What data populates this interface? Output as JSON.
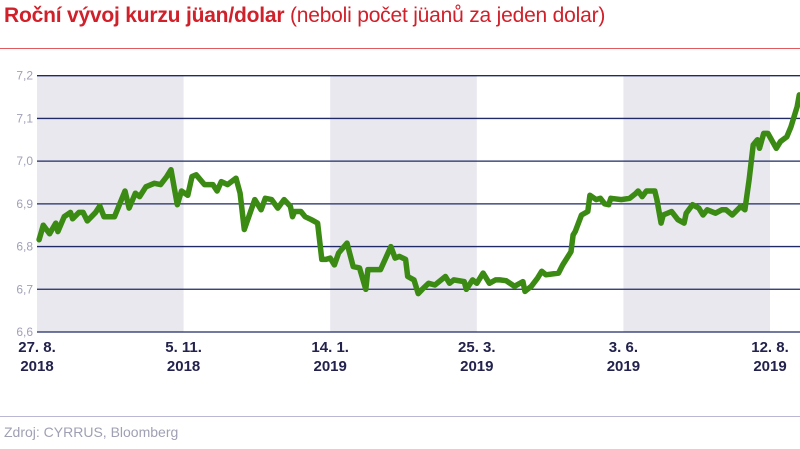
{
  "header": {
    "title": "Roční vývoj kurzu jüan/dolar",
    "subtitle": "(neboli počet jüanů za jeden dolar)"
  },
  "footer": {
    "source": "Zdroj: CYRRUS, Bloomberg"
  },
  "colors": {
    "title": "#d0202a",
    "line": "#3b8a13",
    "grid": "#1f2a66",
    "band": "#e8e8ee",
    "tick_label_y": "#a0a0b8",
    "tick_label_x": "#22224d"
  },
  "chart_data": {
    "type": "line",
    "title": "Roční vývoj kurzu jüan/dolar",
    "ylim": [
      6.6,
      7.2
    ],
    "yticks": [
      "7,2",
      "7,1",
      "7,0",
      "6,9",
      "6,8",
      "6,7",
      "6,6"
    ],
    "ytick_values": [
      7.2,
      7.1,
      7.0,
      6.9,
      6.8,
      6.7,
      6.6
    ],
    "xticks": [
      {
        "date": "2018-08-27",
        "line1": "27. 8.",
        "line2": "2018"
      },
      {
        "date": "2018-11-05",
        "line1": "5. 11.",
        "line2": "2018"
      },
      {
        "date": "2019-01-14",
        "line1": "14. 1.",
        "line2": "2019"
      },
      {
        "date": "2019-03-25",
        "line1": "25. 3.",
        "line2": "2019"
      },
      {
        "date": "2019-06-03",
        "line1": "3. 6.",
        "line2": "2019"
      },
      {
        "date": "2019-08-12",
        "line1": "12. 8.",
        "line2": "2019"
      }
    ],
    "xlim": [
      "2018-08-27",
      "2019-08-26"
    ],
    "grid": true,
    "shaded_bands": [
      [
        "2018-08-27",
        "2018-11-05"
      ],
      [
        "2019-01-14",
        "2019-03-25"
      ],
      [
        "2019-06-03",
        "2019-08-12"
      ]
    ],
    "series": [
      {
        "x": [
          "2018-08-28",
          "2018-08-30",
          "2018-09-02",
          "2018-09-05",
          "2018-09-06",
          "2018-09-09",
          "2018-09-12",
          "2018-09-13",
          "2018-09-16",
          "2018-09-18",
          "2018-09-20",
          "2018-09-24",
          "2018-09-26",
          "2018-09-28",
          "2018-10-03",
          "2018-10-08",
          "2018-10-10",
          "2018-10-13",
          "2018-10-15",
          "2018-10-18",
          "2018-10-22",
          "2018-10-25",
          "2018-10-28",
          "2018-10-30",
          "2018-11-02",
          "2018-11-04",
          "2018-11-07",
          "2018-11-09",
          "2018-11-11",
          "2018-11-15",
          "2018-11-19",
          "2018-11-21",
          "2018-11-23",
          "2018-11-26",
          "2018-11-30",
          "2018-12-02",
          "2018-12-04",
          "2018-12-07",
          "2018-12-09",
          "2018-12-12",
          "2018-12-14",
          "2018-12-17",
          "2018-12-20",
          "2018-12-23",
          "2018-12-26",
          "2018-12-27",
          "2018-12-28",
          "2018-12-31",
          "2019-01-02",
          "2019-01-05",
          "2019-01-08",
          "2019-01-10",
          "2019-01-12",
          "2019-01-14",
          "2019-01-16",
          "2019-01-18",
          "2019-01-22",
          "2019-01-25",
          "2019-01-28",
          "2019-01-31",
          "2019-02-01",
          "2019-02-07",
          "2019-02-12",
          "2019-02-14",
          "2019-02-16",
          "2019-02-19",
          "2019-02-20",
          "2019-02-23",
          "2019-02-25",
          "2019-02-27",
          "2019-03-02",
          "2019-03-05",
          "2019-03-10",
          "2019-03-12",
          "2019-03-14",
          "2019-03-19",
          "2019-03-20",
          "2019-03-23",
          "2019-03-25",
          "2019-03-28",
          "2019-03-31",
          "2019-04-03",
          "2019-04-05",
          "2019-04-08",
          "2019-04-12",
          "2019-04-16",
          "2019-04-17",
          "2019-04-20",
          "2019-04-23",
          "2019-04-25",
          "2019-04-27",
          "2019-05-03",
          "2019-05-05",
          "2019-05-09",
          "2019-05-10",
          "2019-05-11",
          "2019-05-14",
          "2019-05-17",
          "2019-05-18",
          "2019-05-21",
          "2019-05-23",
          "2019-05-25",
          "2019-05-27",
          "2019-05-28",
          "2019-06-02",
          "2019-06-06",
          "2019-06-09",
          "2019-06-10",
          "2019-06-12",
          "2019-06-14",
          "2019-06-18",
          "2019-06-19",
          "2019-06-21",
          "2019-06-22",
          "2019-06-26",
          "2019-06-29",
          "2019-07-02",
          "2019-07-03",
          "2019-07-06",
          "2019-07-09",
          "2019-07-11",
          "2019-07-13",
          "2019-07-17",
          "2019-07-20",
          "2019-07-22",
          "2019-07-25",
          "2019-07-29",
          "2019-07-31",
          "2019-08-02",
          "2019-08-04",
          "2019-08-06",
          "2019-08-07",
          "2019-08-09",
          "2019-08-11",
          "2019-08-15",
          "2019-08-17",
          "2019-08-20",
          "2019-08-22",
          "2019-08-25",
          "2019-08-26"
        ],
        "y": [
          6.816,
          6.85,
          6.83,
          6.855,
          6.835,
          6.87,
          6.88,
          6.865,
          6.88,
          6.88,
          6.86,
          6.88,
          6.895,
          6.87,
          6.87,
          6.93,
          6.89,
          6.925,
          6.917,
          6.94,
          6.948,
          6.945,
          6.964,
          6.98,
          6.898,
          6.93,
          6.92,
          6.964,
          6.968,
          6.945,
          6.945,
          6.93,
          6.952,
          6.945,
          6.96,
          6.925,
          6.84,
          6.882,
          6.91,
          6.886,
          6.913,
          6.91,
          6.89,
          6.91,
          6.894,
          6.87,
          6.882,
          6.882,
          6.87,
          6.863,
          6.855,
          6.77,
          6.77,
          6.773,
          6.757,
          6.785,
          6.808,
          6.753,
          6.75,
          6.7,
          6.746,
          6.746,
          6.8,
          6.773,
          6.777,
          6.77,
          6.73,
          6.722,
          6.69,
          6.7,
          6.714,
          6.71,
          6.73,
          6.714,
          6.722,
          6.718,
          6.7,
          6.722,
          6.714,
          6.738,
          6.714,
          6.722,
          6.722,
          6.72,
          6.707,
          6.718,
          6.695,
          6.707,
          6.726,
          6.742,
          6.734,
          6.738,
          6.757,
          6.788,
          6.827,
          6.835,
          6.874,
          6.882,
          6.92,
          6.91,
          6.913,
          6.9,
          6.898,
          6.913,
          6.91,
          6.913,
          6.925,
          6.93,
          6.917,
          6.93,
          6.93,
          6.91,
          6.855,
          6.874,
          6.882,
          6.863,
          6.855,
          6.878,
          6.898,
          6.89,
          6.874,
          6.886,
          6.878,
          6.886,
          6.886,
          6.874,
          6.894,
          6.886,
          6.956,
          7.038,
          7.05,
          7.03,
          7.065,
          7.065,
          7.03,
          7.046,
          7.057,
          7.08,
          7.128,
          7.155
        ]
      }
    ]
  }
}
